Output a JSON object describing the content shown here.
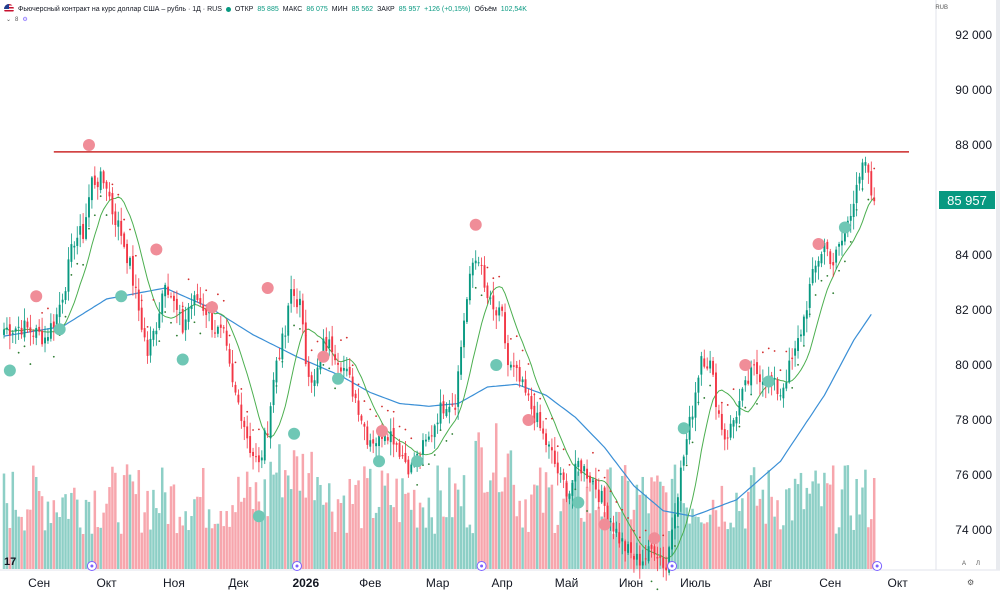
{
  "header": {
    "title": "Фьючерсный контракт на курс доллар США – рубль · 1Д · RUS",
    "open_label": "ОТКР",
    "open_value": "85 885",
    "high_label": "МАКС",
    "high_value": "86 075",
    "low_label": "МИН",
    "low_value": "85 562",
    "close_label": "ЗАКР",
    "close_value": "85 957",
    "change": "+126 (+0,15%)",
    "volume_label": "Объём",
    "volume_value": "102,54K",
    "sub_indicator": "8",
    "currency": "RUB"
  },
  "price_axis": {
    "current_price": "85 957"
  },
  "controls": {
    "scale_auto": "A",
    "scale_log": "Л"
  },
  "colors": {
    "up": "#089981",
    "down": "#f23645",
    "vol_up": "#8dcfc6",
    "vol_down": "#f7a6ad",
    "ma_short": "#4caf50",
    "ma_long": "#3a8fd6",
    "resistance": "#cc2a2a",
    "signal_up": "#6fc7b5",
    "signal_down": "#f08d98"
  },
  "chart_data": {
    "type": "candlestick",
    "ylim": [
      72800,
      92800
    ],
    "y_ticks": [
      {
        "label": "92 000",
        "value": 92000
      },
      {
        "label": "90 000",
        "value": 90000
      },
      {
        "label": "88 000",
        "value": 88000
      },
      {
        "label": "86 000",
        "value": 86000
      },
      {
        "label": "84 000",
        "value": 84000
      },
      {
        "label": "82 000",
        "value": 82000
      },
      {
        "label": "80 000",
        "value": 80000
      },
      {
        "label": "78 000",
        "value": 78000
      },
      {
        "label": "76 000",
        "value": 76000
      },
      {
        "label": "74 000",
        "value": 74000
      }
    ],
    "x_labels": [
      {
        "label": "Сен",
        "t": 12,
        "bold": false
      },
      {
        "label": "Окт",
        "t": 35,
        "bold": false
      },
      {
        "label": "Ноя",
        "t": 58,
        "bold": false
      },
      {
        "label": "Дек",
        "t": 80,
        "bold": false
      },
      {
        "label": "2026",
        "t": 103,
        "bold": true
      },
      {
        "label": "Фев",
        "t": 125,
        "bold": false
      },
      {
        "label": "Мар",
        "t": 148,
        "bold": false
      },
      {
        "label": "Апр",
        "t": 170,
        "bold": false
      },
      {
        "label": "Май",
        "t": 192,
        "bold": false
      },
      {
        "label": "Июн",
        "t": 214,
        "bold": false
      },
      {
        "label": "Июль",
        "t": 236,
        "bold": false
      },
      {
        "label": "Авг",
        "t": 259,
        "bold": false
      },
      {
        "label": "Сен",
        "t": 282,
        "bold": false
      },
      {
        "label": "Окт",
        "t": 305,
        "bold": false
      }
    ],
    "event_marker_t": [
      30,
      100,
      163,
      228,
      298
    ],
    "resistance_level": 87750,
    "keypoints": [
      [
        0,
        81300
      ],
      [
        6,
        81400
      ],
      [
        10,
        81200
      ],
      [
        14,
        81000
      ],
      [
        18,
        81800
      ],
      [
        21,
        83000
      ],
      [
        24,
        84600
      ],
      [
        27,
        84800
      ],
      [
        30,
        86700
      ],
      [
        33,
        86700
      ],
      [
        35,
        86600
      ],
      [
        37,
        85600
      ],
      [
        40,
        84800
      ],
      [
        43,
        83600
      ],
      [
        46,
        82000
      ],
      [
        49,
        80400
      ],
      [
        52,
        81500
      ],
      [
        55,
        83200
      ],
      [
        58,
        82200
      ],
      [
        61,
        81300
      ],
      [
        63,
        82100
      ],
      [
        66,
        82400
      ],
      [
        69,
        82000
      ],
      [
        72,
        81300
      ],
      [
        75,
        81000
      ],
      [
        78,
        79200
      ],
      [
        81,
        78300
      ],
      [
        84,
        77000
      ],
      [
        87,
        76300
      ],
      [
        90,
        77800
      ],
      [
        93,
        80200
      ],
      [
        96,
        81100
      ],
      [
        98,
        82700
      ],
      [
        101,
        82200
      ],
      [
        103,
        80200
      ],
      [
        106,
        79300
      ],
      [
        109,
        80700
      ],
      [
        112,
        80700
      ],
      [
        115,
        80100
      ],
      [
        118,
        79400
      ],
      [
        121,
        78500
      ],
      [
        124,
        77400
      ],
      [
        127,
        77300
      ],
      [
        130,
        77700
      ],
      [
        133,
        77400
      ],
      [
        136,
        76700
      ],
      [
        139,
        76200
      ],
      [
        142,
        76800
      ],
      [
        145,
        77300
      ],
      [
        148,
        78200
      ],
      [
        151,
        78700
      ],
      [
        154,
        78700
      ],
      [
        157,
        81700
      ],
      [
        160,
        83700
      ],
      [
        162,
        84000
      ],
      [
        164,
        82700
      ],
      [
        167,
        81900
      ],
      [
        170,
        81700
      ],
      [
        172,
        80000
      ],
      [
        175,
        79600
      ],
      [
        178,
        78900
      ],
      [
        181,
        78200
      ],
      [
        184,
        77400
      ],
      [
        187,
        76700
      ],
      [
        190,
        75800
      ],
      [
        193,
        75400
      ],
      [
        196,
        76400
      ],
      [
        199,
        76100
      ],
      [
        202,
        75600
      ],
      [
        204,
        75100
      ],
      [
        207,
        74400
      ],
      [
        210,
        73700
      ],
      [
        213,
        73200
      ],
      [
        216,
        72900
      ],
      [
        219,
        73000
      ],
      [
        222,
        73400
      ],
      [
        226,
        72600
      ],
      [
        229,
        74900
      ],
      [
        232,
        76700
      ],
      [
        235,
        78400
      ],
      [
        238,
        80400
      ],
      [
        241,
        80000
      ],
      [
        244,
        78200
      ],
      [
        246,
        77400
      ],
      [
        248,
        77700
      ],
      [
        251,
        78600
      ],
      [
        254,
        79400
      ],
      [
        256,
        79800
      ],
      [
        259,
        79600
      ],
      [
        262,
        79300
      ],
      [
        265,
        79000
      ],
      [
        267,
        79600
      ],
      [
        270,
        80400
      ],
      [
        273,
        81700
      ],
      [
        275,
        82800
      ],
      [
        278,
        83900
      ],
      [
        280,
        84400
      ],
      [
        283,
        83700
      ],
      [
        286,
        84500
      ],
      [
        289,
        85500
      ],
      [
        291,
        86800
      ],
      [
        294,
        87200
      ],
      [
        296,
        86200
      ],
      [
        297,
        85957
      ]
    ],
    "signals_down": [
      [
        11,
        82500
      ],
      [
        29,
        88000
      ],
      [
        52,
        84200
      ],
      [
        71,
        82100
      ],
      [
        90,
        82800
      ],
      [
        109,
        80300
      ],
      [
        129,
        77600
      ],
      [
        161,
        85100
      ],
      [
        179,
        78000
      ],
      [
        205,
        74200
      ],
      [
        222,
        73700
      ],
      [
        253,
        80000
      ],
      [
        278,
        84400
      ]
    ],
    "signals_up": [
      [
        2,
        79800
      ],
      [
        19,
        81300
      ],
      [
        40,
        82500
      ],
      [
        61,
        80200
      ],
      [
        87,
        74500
      ],
      [
        99,
        77500
      ],
      [
        114,
        79500
      ],
      [
        128,
        76500
      ],
      [
        141,
        76500
      ],
      [
        168,
        80000
      ],
      [
        196,
        75000
      ],
      [
        232,
        77700
      ],
      [
        261,
        79400
      ],
      [
        287,
        85000
      ]
    ],
    "ma_long_keypoints": [
      [
        0,
        81050
      ],
      [
        20,
        81400
      ],
      [
        35,
        82400
      ],
      [
        55,
        82800
      ],
      [
        70,
        82100
      ],
      [
        85,
        81100
      ],
      [
        100,
        80300
      ],
      [
        115,
        79600
      ],
      [
        125,
        79000
      ],
      [
        135,
        78600
      ],
      [
        145,
        78500
      ],
      [
        155,
        78600
      ],
      [
        165,
        79200
      ],
      [
        175,
        79300
      ],
      [
        185,
        78900
      ],
      [
        195,
        78100
      ],
      [
        205,
        77000
      ],
      [
        215,
        75600
      ],
      [
        225,
        74700
      ],
      [
        235,
        74500
      ],
      [
        250,
        75100
      ],
      [
        265,
        76500
      ],
      [
        280,
        78900
      ],
      [
        290,
        80900
      ],
      [
        297,
        82000
      ]
    ],
    "volume_ylim": [
      0,
      300000
    ]
  }
}
